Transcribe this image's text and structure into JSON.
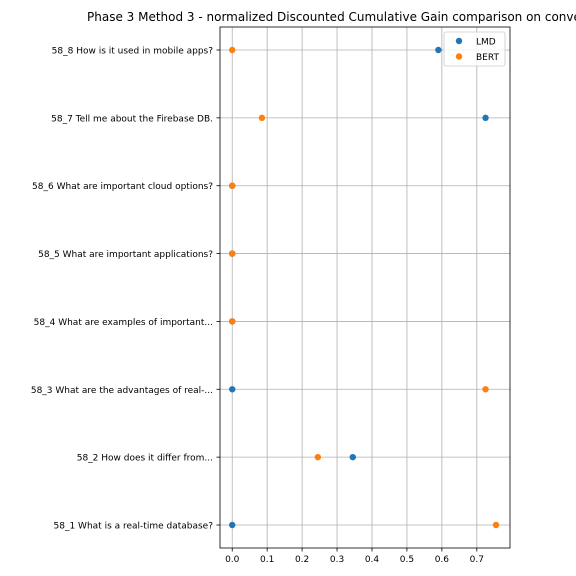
{
  "chart_data": {
    "type": "scatter",
    "title": "Phase 3 Method 3 - normalized Discounted Cumulative Gain comparison on conve",
    "xlabel": "",
    "ylabel": "",
    "xlim": [
      -0.035,
      0.795
    ],
    "xticks": [
      0.0,
      0.1,
      0.2,
      0.3,
      0.4,
      0.5,
      0.6,
      0.7
    ],
    "xtick_labels": [
      "0.0",
      "0.1",
      "0.2",
      "0.3",
      "0.4",
      "0.5",
      "0.6",
      "0.7"
    ],
    "categories": [
      "58_1 What is a real-time database?",
      "58_2 How does it differ from...",
      "58_3 What are the advantages of real-...",
      "58_4 What are examples of important...",
      "58_5 What are important applications?",
      "58_6 What are important cloud options?",
      "58_7 Tell me about the Firebase DB.",
      "58_8 How is it used in mobile apps?"
    ],
    "series": [
      {
        "name": "LMD",
        "color": "#1f77b4",
        "values": [
          0.0,
          0.345,
          0.0,
          0.0,
          0.0,
          0.0,
          0.725,
          0.59
        ]
      },
      {
        "name": "BERT",
        "color": "#ff7f0e",
        "values": [
          0.755,
          0.245,
          0.725,
          0.0,
          0.0,
          0.0,
          0.085,
          0.0
        ]
      }
    ],
    "grid": true,
    "legend_position": "top-right"
  }
}
